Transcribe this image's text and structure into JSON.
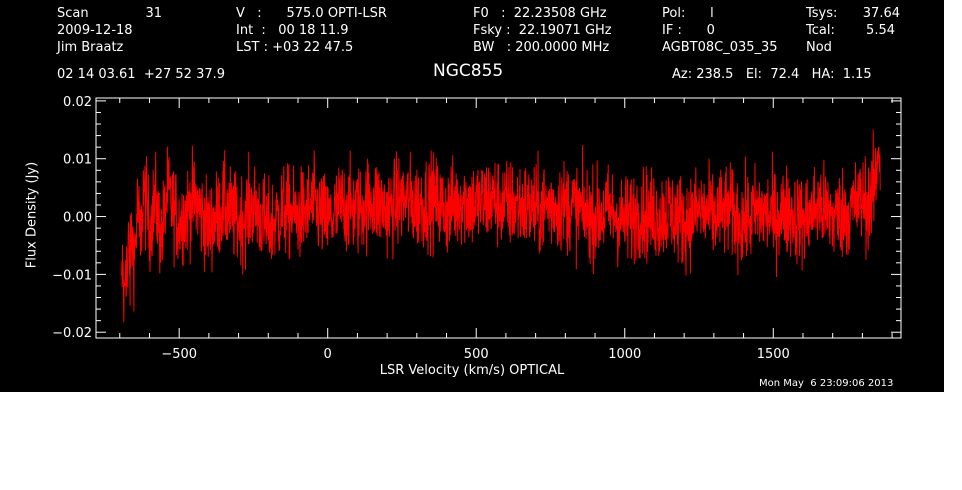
{
  "header": {
    "col1": {
      "scan_label": "Scan",
      "scan_value": "31",
      "date": "2009-12-18",
      "observer": "Jim Braatz",
      "coords": "02 14 03.61  +27 52 37.9"
    },
    "col2": {
      "v_line": "V   :      575.0 OPTI-LSR",
      "int_line": "Int  :   00 18 11.9",
      "lst_line": "LST : +03 22 47.5"
    },
    "col3": {
      "f0_line": "F0   :  22.23508 GHz",
      "fsky_line": "Fsky :  22.19071 GHz",
      "bw_line": "BW   : 200.0000 MHz"
    },
    "col4": {
      "pol_line": "Pol:      l",
      "if_line": "IF :      0",
      "project": "AGBT08C_035_35"
    },
    "col5": {
      "tsys_label": "Tsys:",
      "tsys_value": "37.64",
      "tcal_label": "Tcal:",
      "tcal_value": "5.54",
      "mode": "Nod"
    },
    "source": "NGC855",
    "pointing": "Az: 238.5   El:  72.4   HA:  1.15",
    "timestamp": "Mon May  6 23:09:06 2013"
  },
  "chart_data": {
    "type": "line",
    "xlabel": "LSR Velocity (km/s) OPTICAL",
    "ylabel": "Flux Density (Jy)",
    "xlim": [
      -780,
      1930
    ],
    "ylim": [
      -0.021,
      0.0205
    ],
    "x_ticks": [
      -500,
      0,
      500,
      1000,
      1500
    ],
    "x_tick_labels": [
      "−500",
      "0",
      "500",
      "1000",
      "1500"
    ],
    "y_ticks": [
      -0.02,
      -0.01,
      0.0,
      0.01,
      0.02
    ],
    "y_tick_labels": [
      "−0.02",
      "−0.01",
      "0.00",
      "0.01",
      "0.02"
    ],
    "colors": {
      "line": "#ff0000",
      "axes": "#ffffff",
      "background": "#000000"
    },
    "series": [
      {
        "values_note_excluded": true,
        "x_range": [
          -695,
          1860
        ],
        "points": [
          [
            -695,
            -0.014
          ],
          [
            -690,
            -0.009
          ],
          [
            -685,
            -0.016
          ],
          [
            -680,
            -0.006
          ],
          [
            -675,
            -0.012
          ],
          [
            -670,
            -0.004
          ],
          [
            -665,
            -0.01
          ],
          [
            -660,
            -0.003
          ],
          [
            -650,
            -0.007
          ],
          [
            -640,
            0.002
          ],
          [
            -630,
            -0.005
          ],
          [
            -620,
            0.005
          ],
          [
            -600,
            -0.002
          ],
          [
            -580,
            0.003
          ],
          [
            -560,
            -0.004
          ],
          [
            -540,
            0.004
          ],
          [
            -500,
            -0.001
          ],
          [
            -450,
            0.003
          ],
          [
            -400,
            -0.002
          ],
          [
            -350,
            0.002
          ],
          [
            -300,
            -0.001
          ],
          [
            -250,
            0.002
          ],
          [
            -200,
            -0.002
          ],
          [
            -150,
            0.001
          ],
          [
            -100,
            0.0
          ],
          [
            -50,
            0.002
          ],
          [
            0,
            -0.001
          ],
          [
            50,
            0.002
          ],
          [
            100,
            0.001
          ],
          [
            150,
            0.003
          ],
          [
            200,
            0.001
          ],
          [
            250,
            0.003
          ],
          [
            300,
            0.002
          ],
          [
            350,
            0.003
          ],
          [
            400,
            0.001
          ],
          [
            450,
            0.003
          ],
          [
            500,
            0.002
          ],
          [
            550,
            0.003
          ],
          [
            600,
            0.002
          ],
          [
            650,
            0.002
          ],
          [
            700,
            0.001
          ],
          [
            750,
            0.002
          ],
          [
            800,
            0.002
          ],
          [
            850,
            0.001
          ],
          [
            900,
            0.0
          ],
          [
            950,
            0.001
          ],
          [
            1000,
            -0.001
          ],
          [
            1050,
            0.001
          ],
          [
            1100,
            0.0
          ],
          [
            1150,
            0.001
          ],
          [
            1200,
            -0.001
          ],
          [
            1250,
            0.001
          ],
          [
            1300,
            0.0
          ],
          [
            1350,
            0.001
          ],
          [
            1400,
            -0.001
          ],
          [
            1450,
            0.001
          ],
          [
            1500,
            0.0
          ],
          [
            1550,
            0.001
          ],
          [
            1600,
            -0.001
          ],
          [
            1650,
            0.002
          ],
          [
            1700,
            0.0
          ],
          [
            1750,
            0.001
          ],
          [
            1780,
            0.002
          ],
          [
            1800,
            0.003
          ],
          [
            1820,
            0.002
          ],
          [
            1835,
            0.004
          ],
          [
            1845,
            0.006
          ],
          [
            1850,
            0.01
          ],
          [
            1855,
            0.014
          ],
          [
            1860,
            0.008
          ]
        ],
        "rms_noise": 0.004
      }
    ]
  }
}
